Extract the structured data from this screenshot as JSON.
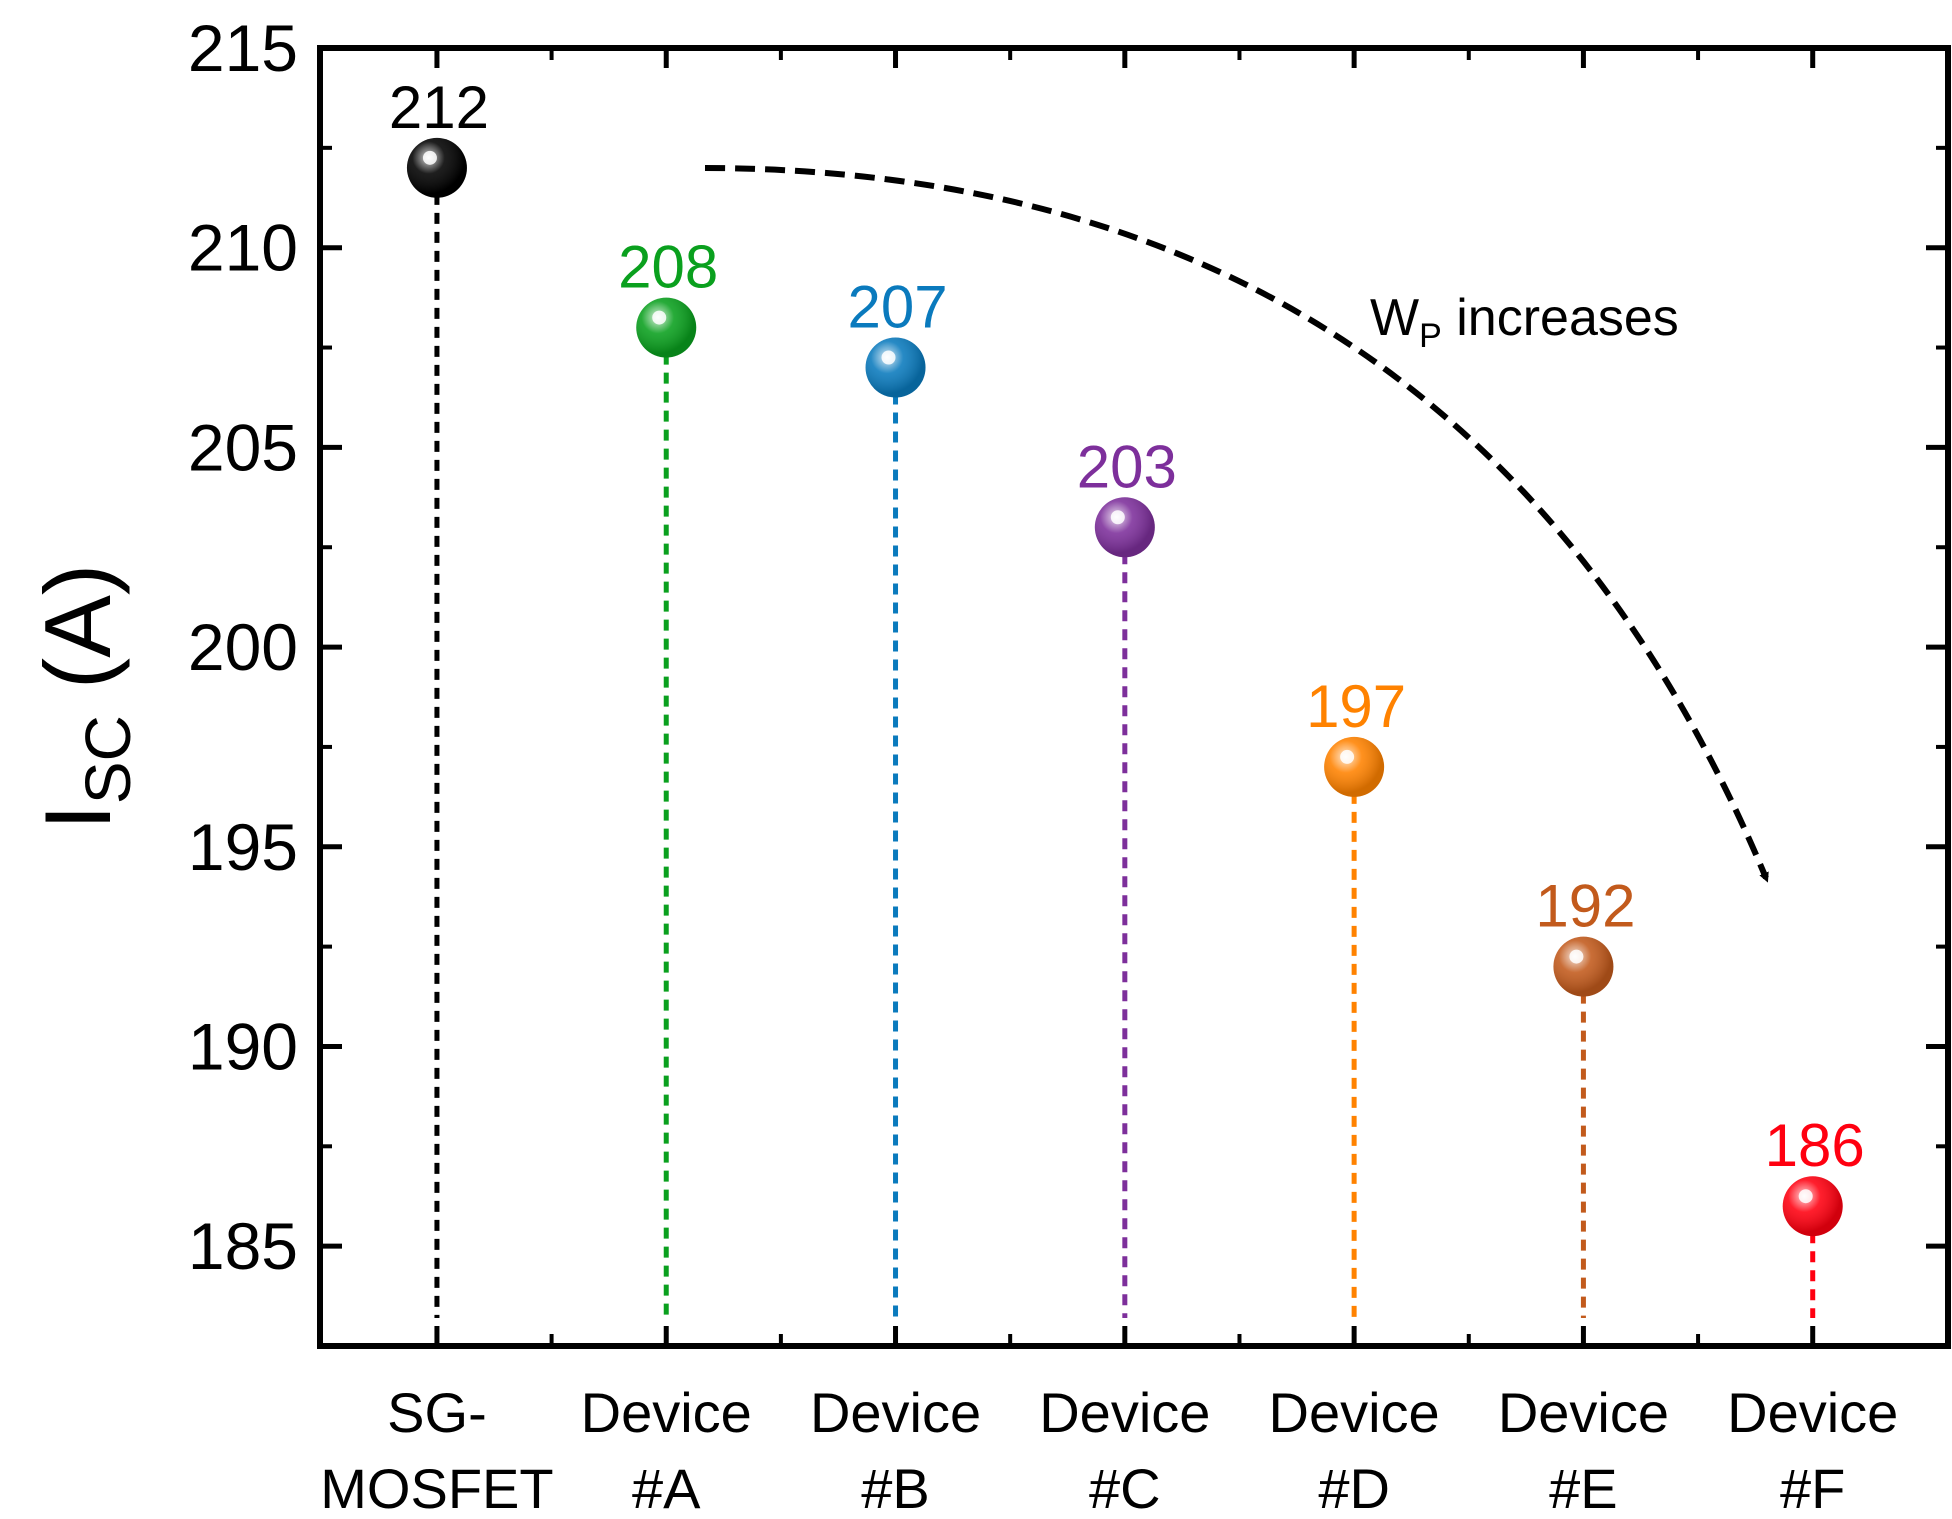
{
  "chart_data": {
    "type": "scatter",
    "title": "",
    "xlabel": "",
    "ylabel": {
      "main": "I",
      "sub": "SC",
      "unit": " (A)"
    },
    "ylim": [
      182.5,
      215
    ],
    "yticks": [
      185,
      190,
      195,
      200,
      205,
      210,
      215
    ],
    "categories": [
      {
        "line1": "SG-",
        "line2": "MOSFET"
      },
      {
        "line1": "Device",
        "line2": "#A"
      },
      {
        "line1": "Device",
        "line2": "#B"
      },
      {
        "line1": "Device",
        "line2": "#C"
      },
      {
        "line1": "Device",
        "line2": "#D"
      },
      {
        "line1": "Device",
        "line2": "#E"
      },
      {
        "line1": "Device",
        "line2": "#F"
      }
    ],
    "values": [
      212,
      208,
      207,
      203,
      197,
      192,
      186
    ],
    "value_labels": [
      "212",
      "208",
      "207",
      "203",
      "197",
      "192",
      "186"
    ],
    "colors": [
      "#000000",
      "#0aa01e",
      "#0a7abd",
      "#7d2f9b",
      "#ff8200",
      "#c25a1c",
      "#ff0010"
    ],
    "grid": false,
    "annotation": {
      "text_main": "W",
      "text_sub": "P",
      "text_rest": " increases"
    }
  }
}
